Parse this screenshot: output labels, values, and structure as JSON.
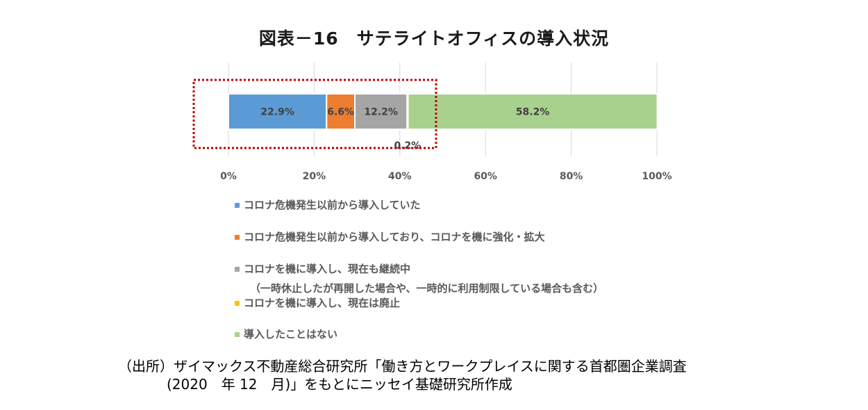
{
  "chart_data": {
    "type": "bar",
    "orientation": "horizontal-stacked-100",
    "title": "図表－16　サテライトオフィスの導入状況",
    "xlim": [
      0,
      100
    ],
    "x_ticks": [
      "0%",
      "20%",
      "40%",
      "60%",
      "80%",
      "100%"
    ],
    "grid": true,
    "series": [
      {
        "name": "コロナ危機発生以前から導入していた",
        "value": 22.9,
        "label": "22.9%",
        "color": "#5b9bd5"
      },
      {
        "name": "コロナ危機発生以前から導入しており、コロナを機に強化・拡大",
        "value": 6.6,
        "label": "6.6%",
        "color": "#ed7d31"
      },
      {
        "name": "コロナを機に導入し、現在も継続中",
        "name_sub": "（一時休止したが再開した場合や、一時的に利用制限している場合も含む）",
        "value": 12.2,
        "label": "12.2%",
        "color": "#a5a5a5"
      },
      {
        "name": "コロナを機に導入し、現在は廃止",
        "value": 0.2,
        "label": "0.2%",
        "color": "#ffc000"
      },
      {
        "name": "導入したことはない",
        "value": 58.2,
        "label": "58.2%",
        "color": "#a9d18e"
      }
    ],
    "highlight_box": {
      "style": "dotted",
      "color": "#c00000"
    }
  },
  "source": {
    "line1": "（出所）ザイマックス不動産総合研究所「働き方とワークプレイスに関する首都圏企業調査",
    "line2": "(2020　年 12　月)」をもとにニッセイ基礎研究所作成"
  }
}
